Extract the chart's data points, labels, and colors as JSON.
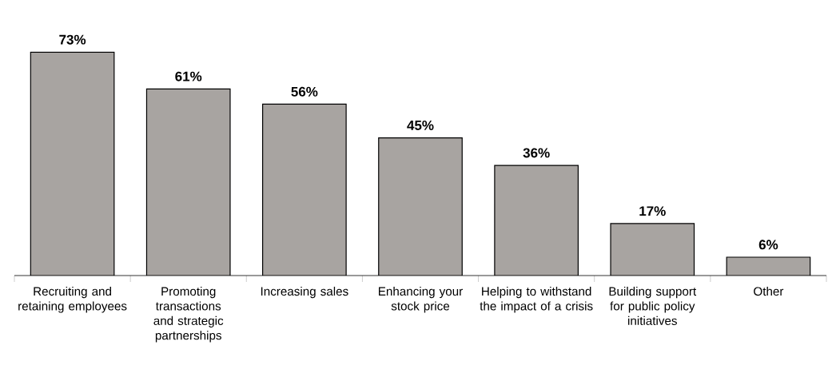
{
  "chart_data": {
    "type": "bar",
    "categories": [
      "Recruiting and retaining employees",
      "Promoting transactions and strategic partnerships",
      "Increasing sales",
      "Enhancing your stock price",
      "Helping to withstand the impact of a crisis",
      "Building support for public policy initiatives",
      "Other"
    ],
    "values": [
      73,
      61,
      56,
      45,
      36,
      17,
      6
    ],
    "value_labels": [
      "73%",
      "61%",
      "56%",
      "45%",
      "36%",
      "17%",
      "6%"
    ],
    "color": "#a8a4a1"
  }
}
